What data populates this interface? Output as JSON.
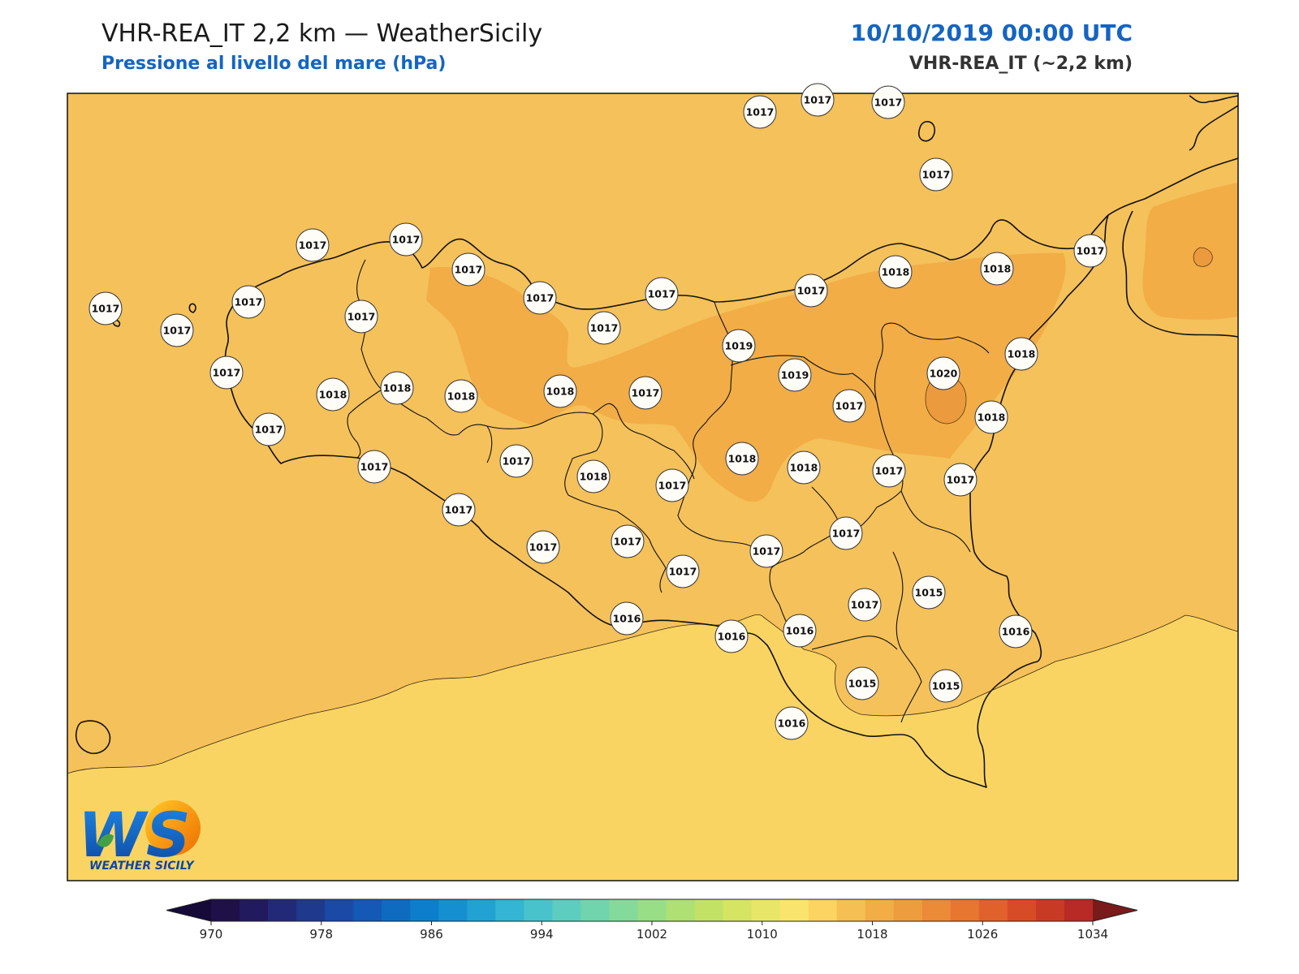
{
  "header": {
    "title": "VHR-REA_IT 2,2 km — WeatherSicily",
    "subtitle": "Pressione al livello del mare (hPa)",
    "datetime": "10/10/2019 00:00 UTC",
    "model": "VHR-REA_IT (~2,2 km)"
  },
  "logo": {
    "letters": "WS",
    "caption": "WEATHER SICILY"
  },
  "colors": {
    "base_field": "#f5c15a",
    "high_field": "#f2ad47",
    "peak_field": "#ec9a3e",
    "low_field": "#fad462",
    "coast": "#111111"
  },
  "stations": [
    {
      "value": "1017"
    },
    {
      "value": "1017"
    },
    {
      "value": "1017"
    },
    {
      "value": "1017"
    },
    {
      "value": "1017"
    },
    {
      "value": "1017"
    },
    {
      "value": "1017"
    },
    {
      "value": "1017"
    },
    {
      "value": "1017"
    },
    {
      "value": "1017"
    },
    {
      "value": "1017"
    },
    {
      "value": "1017"
    },
    {
      "value": "1017"
    },
    {
      "value": "1018"
    },
    {
      "value": "1018"
    },
    {
      "value": "1017"
    },
    {
      "value": "1017"
    },
    {
      "value": "1017"
    },
    {
      "value": "1017"
    },
    {
      "value": "1018"
    },
    {
      "value": "1018"
    },
    {
      "value": "1019"
    },
    {
      "value": "1017"
    },
    {
      "value": "1019"
    },
    {
      "value": "1020"
    },
    {
      "value": "1018"
    },
    {
      "value": "1018"
    },
    {
      "value": "1017"
    },
    {
      "value": "1017"
    },
    {
      "value": "1018"
    },
    {
      "value": "1017"
    },
    {
      "value": "1018"
    },
    {
      "value": "1018"
    },
    {
      "value": "1018"
    },
    {
      "value": "1018"
    },
    {
      "value": "1017"
    },
    {
      "value": "1017"
    },
    {
      "value": "1017"
    },
    {
      "value": "1017"
    },
    {
      "value": "1017"
    },
    {
      "value": "1017"
    },
    {
      "value": "1017"
    },
    {
      "value": "1017"
    },
    {
      "value": "1017"
    },
    {
      "value": "1016"
    },
    {
      "value": "1016"
    },
    {
      "value": "1016"
    },
    {
      "value": "1016"
    },
    {
      "value": "1017"
    },
    {
      "value": "1017"
    },
    {
      "value": "1015"
    },
    {
      "value": "1015"
    },
    {
      "value": "1015"
    },
    {
      "value": "1016"
    }
  ],
  "colorbar": {
    "tick_labels": [
      "970",
      "978",
      "986",
      "994",
      "1002",
      "1010",
      "1018",
      "1026",
      "1034"
    ],
    "colors": [
      "#1f1048",
      "#221a5e",
      "#222a78",
      "#1f3a8c",
      "#1a4aa6",
      "#1459b5",
      "#0f6bc0",
      "#0d7ecb",
      "#168fd0",
      "#22a2d2",
      "#33b5d3",
      "#49c3cb",
      "#5dcdbf",
      "#70d5ad",
      "#84da9a",
      "#98de86",
      "#aee074",
      "#c2e266",
      "#d6e464",
      "#e8e668",
      "#f9e56d",
      "#fbd462",
      "#f5bf53",
      "#f2ad47",
      "#ee9d3e",
      "#eb8a37",
      "#e77630",
      "#e0612b",
      "#d84b27",
      "#c93a25",
      "#b82a25"
    ],
    "extend_low": "#150a38",
    "extend_high": "#7a1a1a"
  }
}
